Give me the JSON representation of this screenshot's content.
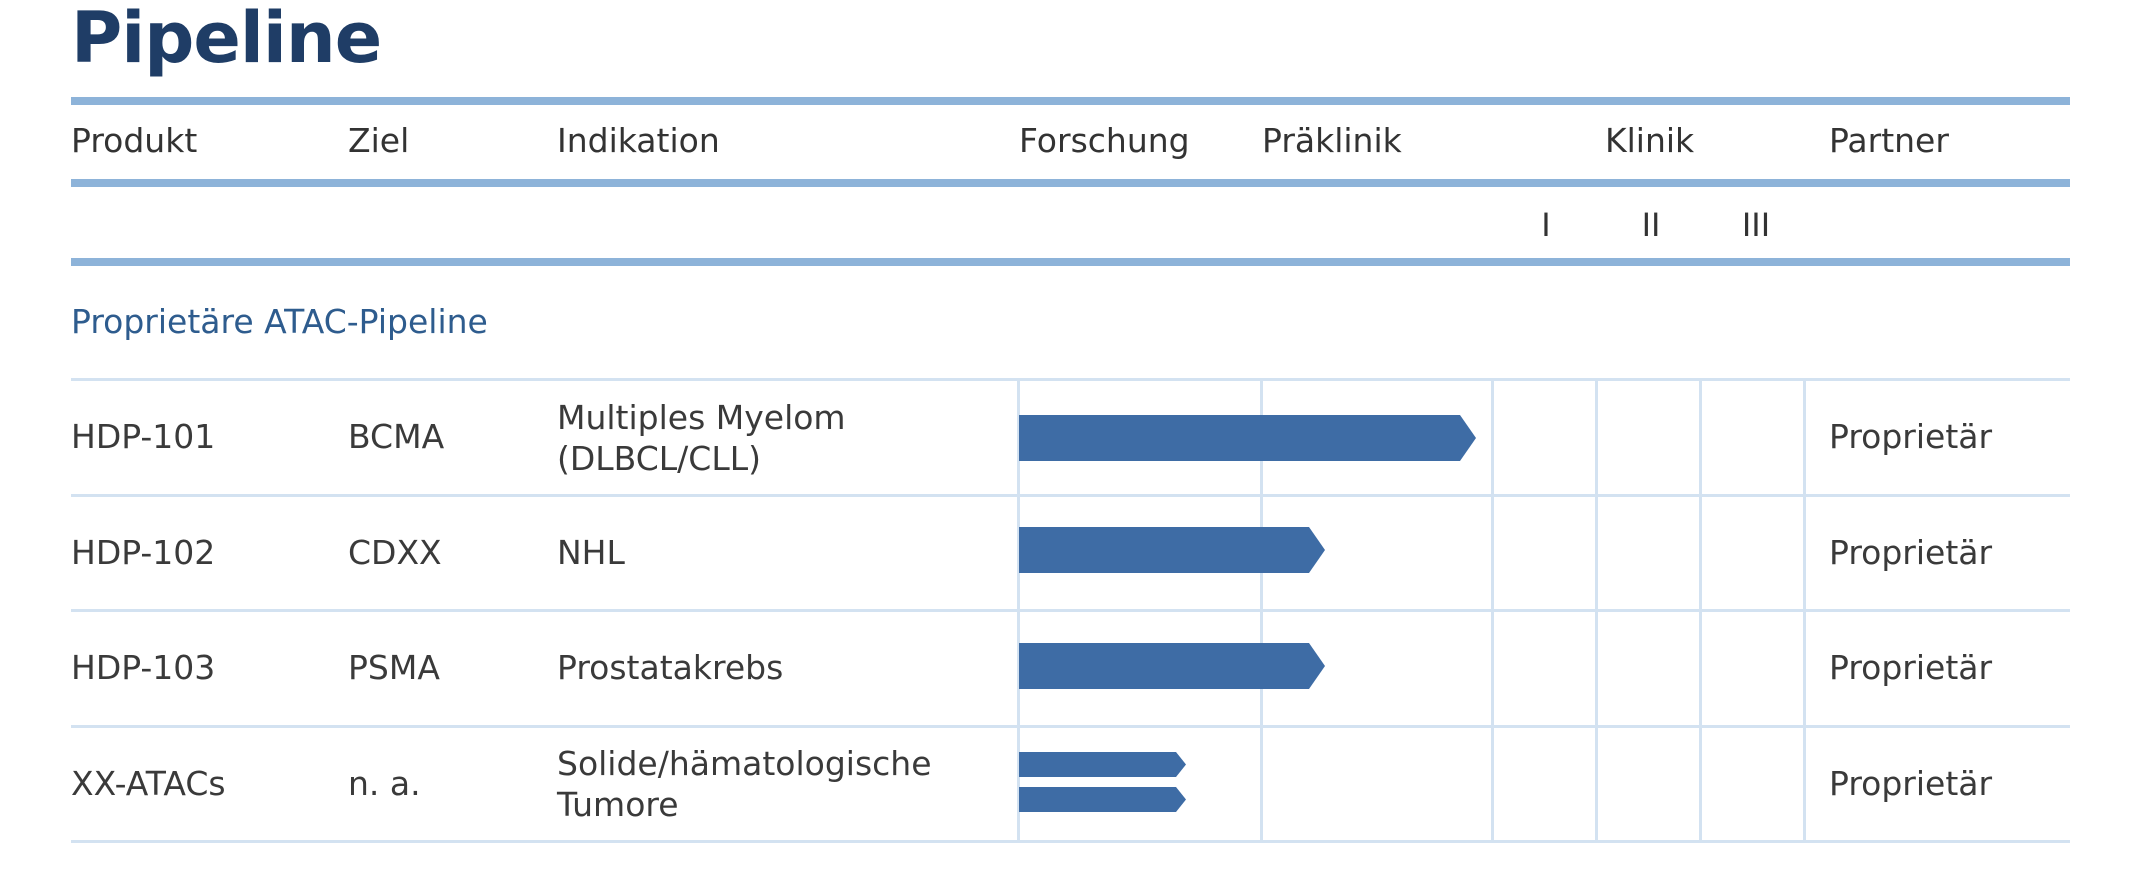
{
  "title": "Pipeline",
  "columns": {
    "product": "Produkt",
    "target": "Ziel",
    "indication": "Indikation",
    "research": "Forschung",
    "preclinic": "Präklinik",
    "clinic": "Klinik",
    "partner": "Partner"
  },
  "clinic_phases": [
    "I",
    "II",
    "III"
  ],
  "section_title": "Proprietäre ATAC-Pipeline",
  "rows": [
    {
      "product": "HDP-101",
      "target": "BCMA",
      "indication": [
        "Multiples Myelom",
        "(DLBCL/CLL)"
      ],
      "partner": "Proprietär",
      "progress": [
        "Präklinik (late)"
      ]
    },
    {
      "product": "HDP-102",
      "target": "CDXX",
      "indication": [
        "NHL"
      ],
      "partner": "Proprietär",
      "progress": [
        "Präklinik (early)"
      ]
    },
    {
      "product": "HDP-103",
      "target": "PSMA",
      "indication": [
        "Prostatakrebs"
      ],
      "partner": "Proprietär",
      "progress": [
        "Präklinik (early)"
      ]
    },
    {
      "product": "XX-ATACs",
      "target": "n. a.",
      "indication": [
        "Solide/hämatologische",
        "Tumore"
      ],
      "partner": "Proprietär",
      "progress": [
        "Forschung",
        "Forschung"
      ]
    }
  ],
  "colors": {
    "title": "#1f3d66",
    "rule": "#8db3d9",
    "bar": "#3e6ca5",
    "section": "#2e5c8e"
  }
}
